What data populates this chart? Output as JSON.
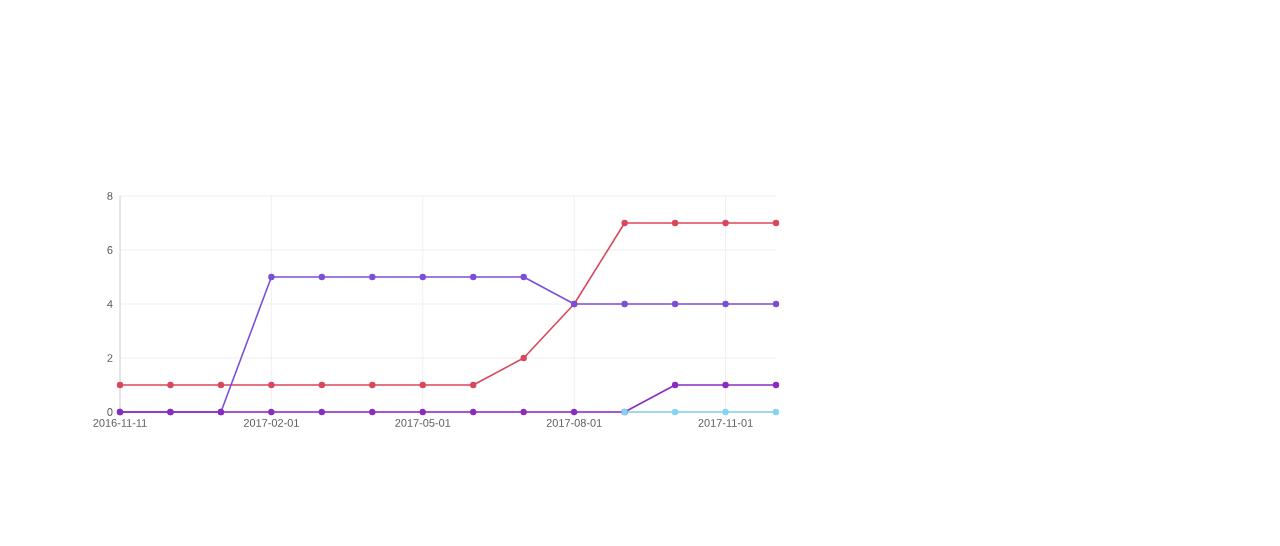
{
  "chart_data": {
    "type": "line",
    "categories": [
      "2016-11-11",
      null,
      null,
      "2017-02-01",
      null,
      null,
      "2017-05-01",
      null,
      null,
      "2017-08-01",
      null,
      null,
      "2017-11-01",
      null
    ],
    "series": [
      {
        "color": "#d9475c",
        "values": [
          1,
          1,
          1,
          1,
          1,
          1,
          1,
          1,
          2,
          4,
          7,
          7,
          7,
          7
        ]
      },
      {
        "color": "#7b4fd8",
        "values": [
          0,
          0,
          0,
          5,
          5,
          5,
          5,
          5,
          5,
          4,
          4,
          4,
          4,
          4
        ]
      },
      {
        "color": "#8a2bc2",
        "values": [
          0,
          0,
          0,
          0,
          0,
          0,
          0,
          0,
          0,
          0,
          0,
          1,
          1,
          1
        ]
      },
      {
        "color": "#86d4f2",
        "values": [
          null,
          null,
          null,
          null,
          null,
          null,
          null,
          null,
          null,
          null,
          0,
          0,
          0,
          0
        ]
      }
    ],
    "ylim": [
      0,
      8
    ],
    "yticks": [
      0,
      2,
      4,
      6,
      8
    ],
    "grid": true,
    "marker": "circle"
  }
}
